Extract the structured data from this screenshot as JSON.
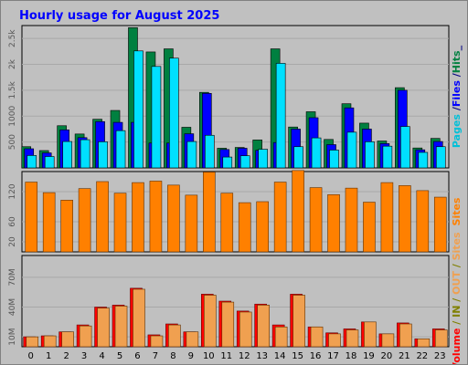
{
  "chart_data": {
    "type": "bar",
    "title": "Hourly usage for August 2025",
    "categories": [
      "0",
      "1",
      "2",
      "3",
      "4",
      "5",
      "6",
      "7",
      "8",
      "9",
      "10",
      "11",
      "12",
      "13",
      "14",
      "15",
      "16",
      "17",
      "18",
      "19",
      "20",
      "21",
      "22",
      "23"
    ],
    "colors": {
      "title": "#0000ff",
      "hits": "#008040",
      "files": "#0000ff",
      "pages": "#00e0ff",
      "sites": "#ff8000",
      "volume": "#ff0000",
      "in": "#808000",
      "out": "#f0a050",
      "plot_bg": "#c0c0c0",
      "grid": "#a8a8a8"
    },
    "panels": [
      {
        "name": "hits_files_pages",
        "ylabels": [
          {
            "text": "Pages",
            "color": "#00c0d8"
          },
          {
            "text": " /",
            "color": "#000080"
          },
          {
            "text": "Files",
            "color": "#0000ff"
          },
          {
            "text": " /",
            "color": "#000080"
          },
          {
            "text": "Hits",
            "color": "#008040"
          },
          {
            "text": "_",
            "color": "#000080"
          }
        ],
        "ylim": [
          0,
          2750
        ],
        "yticks": [
          500,
          1000,
          1500,
          2000,
          2500
        ],
        "ytick_labels": [
          "500",
          "1000",
          "1.5k",
          "2k",
          "2.5k"
        ],
        "series": [
          {
            "name": "Hits",
            "values": [
              410,
              335,
              815,
              655,
              940,
              1110,
              2710,
              2240,
              2300,
              785,
              1460,
              380,
              395,
              540,
              2300,
              790,
              1085,
              550,
              1240,
              865,
              520,
              1550,
              385,
              570
            ]
          },
          {
            "name": "Files",
            "values": [
              370,
              290,
              735,
              585,
              895,
              880,
              880,
              480,
              480,
              660,
              1440,
              355,
              380,
              340,
              490,
              750,
              970,
              450,
              1160,
              750,
              470,
              1500,
              350,
              510
            ]
          },
          {
            "name": "Pages",
            "values": [
              240,
              220,
              510,
              545,
              505,
              720,
              2260,
              1960,
              2120,
              510,
              630,
              210,
              235,
              360,
              2020,
              410,
              580,
              345,
              690,
              505,
              420,
              800,
              300,
              410
            ]
          }
        ]
      },
      {
        "name": "sites",
        "ylabels": [
          {
            "text": "Sites",
            "color": "#ff8000"
          }
        ],
        "ylim": [
          0,
          160
        ],
        "yticks": [
          20,
          60,
          120
        ],
        "ytick_labels": [
          "20",
          "60",
          "120"
        ],
        "series": [
          {
            "name": "Sites",
            "values": [
              139,
              118,
              103,
              126,
              140,
              117,
              138,
              141,
              133,
              113,
              159,
              117,
              98,
              100,
              139,
              162,
              128,
              114,
              127,
              99,
              138,
              132,
              122,
              109
            ]
          }
        ]
      },
      {
        "name": "volume",
        "ylabels": [
          {
            "text": "Volume",
            "color": "#ff0000"
          },
          {
            "text": "  /  ",
            "color": "#808000"
          },
          {
            "text": "IN",
            "color": "#808000"
          },
          {
            "text": "  /  ",
            "color": "#808000"
          },
          {
            "text": "OUT",
            "color": "#f0a050"
          },
          {
            "text": "  /  ",
            "color": "#808000"
          },
          {
            "text": "Sites",
            "color": "#f0a050"
          }
        ],
        "ylim": [
          0,
          92
        ],
        "yticks": [
          10,
          40,
          70
        ],
        "ytick_labels": [
          "10M",
          "40M",
          "70M"
        ],
        "series": [
          {
            "name": "Volume",
            "values": [
              10,
              11,
              15,
              22,
              40,
              42,
              59,
              12,
              23,
              15,
              53,
              46,
              36,
              43,
              22,
              53,
              20,
              14,
              18,
              25,
              13,
              24,
              8,
              18
            ]
          },
          {
            "name": "OUT",
            "values": [
              10,
              11,
              15,
              21,
              39,
              41,
              58,
              11,
              22,
              15,
              52,
              45,
              35,
              42,
              20,
              52,
              20,
              13,
              17,
              25,
              13,
              23,
              8,
              17
            ]
          }
        ]
      }
    ]
  }
}
